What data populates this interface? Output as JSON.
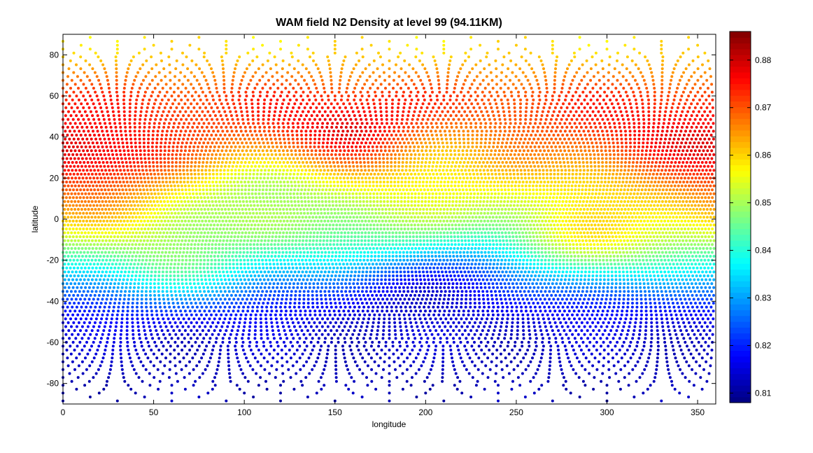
{
  "chart_data": {
    "type": "scatter",
    "title": "WAM field N2 Density at level 99 (94.11KM)",
    "xlabel": "longitude",
    "ylabel": "latitude",
    "xlim": [
      0,
      360
    ],
    "ylim": [
      -90,
      90
    ],
    "xticks": [
      0,
      50,
      100,
      150,
      200,
      250,
      300,
      350
    ],
    "yticks": [
      -80,
      -60,
      -40,
      -20,
      0,
      20,
      40,
      60,
      80
    ],
    "grid": false,
    "colormap": "jet",
    "colorbar": {
      "range": [
        0.808,
        0.886
      ],
      "ticks": [
        "0.81",
        "0.82",
        "0.83",
        "0.84",
        "0.85",
        "0.86",
        "0.87",
        "0.88"
      ],
      "tick_values": [
        0.81,
        0.82,
        0.83,
        0.84,
        0.85,
        0.86,
        0.87,
        0.88
      ],
      "position": "right"
    },
    "latitude_profile": {
      "lat": [
        -90,
        -80,
        -70,
        -60,
        -50,
        -40,
        -30,
        -20,
        -10,
        0,
        10,
        20,
        30,
        40,
        50,
        60,
        70,
        80,
        90
      ],
      "value": [
        0.812,
        0.812,
        0.813,
        0.814,
        0.816,
        0.821,
        0.829,
        0.838,
        0.846,
        0.851,
        0.855,
        0.86,
        0.865,
        0.869,
        0.872,
        0.872,
        0.866,
        0.86,
        0.858
      ]
    },
    "anomalies": [
      {
        "lon": 22,
        "lat": 28,
        "amplitude": 0.012
      },
      {
        "lon": 165,
        "lat": 40,
        "amplitude": 0.012
      },
      {
        "lon": 330,
        "lat": 38,
        "amplitude": 0.006
      },
      {
        "lon": 200,
        "lat": 38,
        "amplitude": -0.008
      },
      {
        "lon": 115,
        "lat": 18,
        "amplitude": -0.008
      },
      {
        "lon": 285,
        "lat": -15,
        "amplitude": 0.014
      },
      {
        "lon": 20,
        "lat": 2,
        "amplitude": 0.006
      },
      {
        "lon": 345,
        "lat": 6,
        "amplitude": 0.005
      },
      {
        "lon": 60,
        "lat": -28,
        "amplitude": 0.01
      },
      {
        "lon": 190,
        "lat": -32,
        "amplitude": -0.008
      },
      {
        "lon": 240,
        "lat": -20,
        "amplitude": -0.01
      }
    ]
  }
}
